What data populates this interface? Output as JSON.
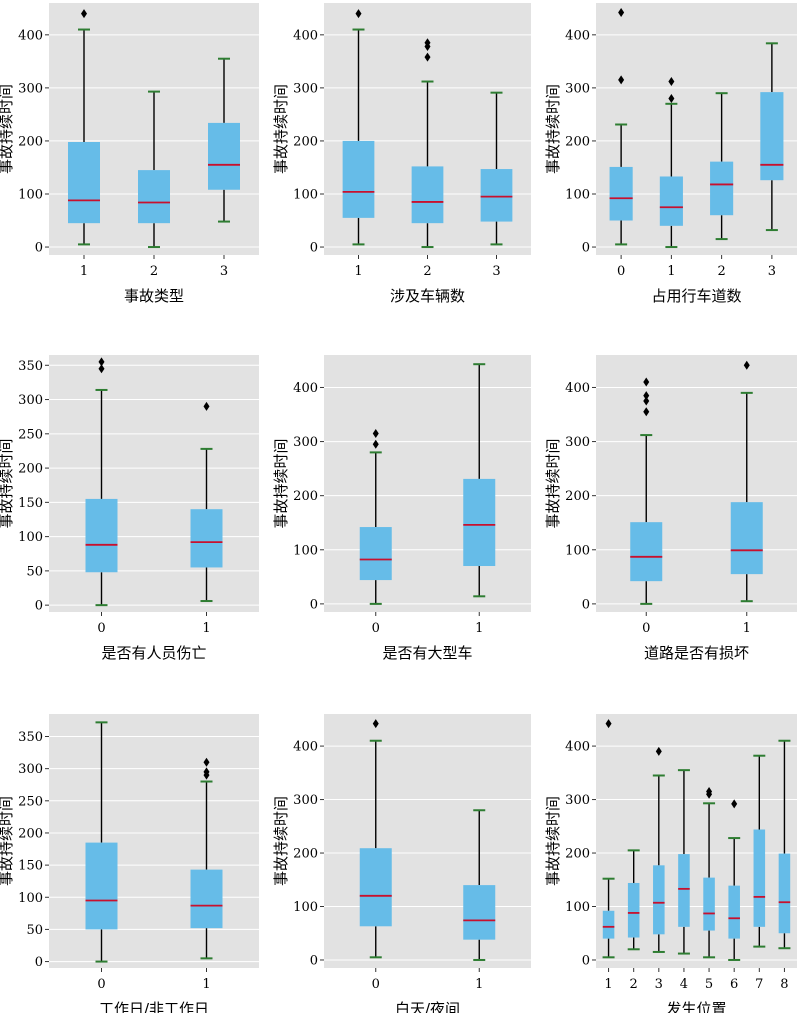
{
  "colors": {
    "box": "#66bce8",
    "median": "#c8102e",
    "cap": "#2e7d32",
    "whisker": "#000000",
    "outlier": "#000000"
  },
  "chart_data": [
    {
      "type": "boxplot",
      "xlabel": "事故类型",
      "ylabel": "事故持续时间",
      "ylim": [
        -15,
        460
      ],
      "yticks": [
        0,
        100,
        200,
        300,
        400
      ],
      "categories": [
        "1",
        "2",
        "3"
      ],
      "boxes": [
        {
          "min": 5,
          "q1": 45,
          "median": 88,
          "q3": 198,
          "max": 410,
          "outliers": [
            440
          ]
        },
        {
          "min": 0,
          "q1": 45,
          "median": 84,
          "q3": 145,
          "max": 293,
          "outliers": []
        },
        {
          "min": 48,
          "q1": 108,
          "median": 155,
          "q3": 234,
          "max": 355,
          "outliers": []
        }
      ]
    },
    {
      "type": "boxplot",
      "xlabel": "涉及车辆数",
      "ylabel": "事故持续时间",
      "ylim": [
        -15,
        460
      ],
      "yticks": [
        0,
        100,
        200,
        300,
        400
      ],
      "categories": [
        "1",
        "2",
        "3"
      ],
      "boxes": [
        {
          "min": 5,
          "q1": 55,
          "median": 104,
          "q3": 200,
          "max": 410,
          "outliers": [
            440
          ]
        },
        {
          "min": 0,
          "q1": 45,
          "median": 85,
          "q3": 152,
          "max": 312,
          "outliers": [
            358,
            378,
            385
          ]
        },
        {
          "min": 5,
          "q1": 48,
          "median": 95,
          "q3": 147,
          "max": 291,
          "outliers": []
        }
      ]
    },
    {
      "type": "boxplot",
      "xlabel": "占用行车道数",
      "ylabel": "事故持续时间",
      "ylim": [
        -15,
        460
      ],
      "yticks": [
        0,
        100,
        200,
        300,
        400
      ],
      "categories": [
        "0",
        "1",
        "2",
        "3"
      ],
      "boxes": [
        {
          "min": 5,
          "q1": 50,
          "median": 92,
          "q3": 151,
          "max": 231,
          "outliers": [
            315,
            442
          ]
        },
        {
          "min": 0,
          "q1": 40,
          "median": 75,
          "q3": 133,
          "max": 270,
          "outliers": [
            280,
            312
          ]
        },
        {
          "min": 15,
          "q1": 60,
          "median": 118,
          "q3": 161,
          "max": 290,
          "outliers": []
        },
        {
          "min": 32,
          "q1": 126,
          "median": 155,
          "q3": 292,
          "max": 384,
          "outliers": []
        }
      ]
    },
    {
      "type": "boxplot",
      "xlabel": "是否有人员伤亡",
      "ylabel": "事故持续时间",
      "ylim": [
        -10,
        365
      ],
      "yticks": [
        0,
        50,
        100,
        150,
        200,
        250,
        300,
        350
      ],
      "categories": [
        "0",
        "1"
      ],
      "boxes": [
        {
          "min": 0,
          "q1": 48,
          "median": 88,
          "q3": 155,
          "max": 314,
          "outliers": [
            345,
            355
          ]
        },
        {
          "min": 6,
          "q1": 55,
          "median": 92,
          "q3": 140,
          "max": 228,
          "outliers": [
            290
          ]
        }
      ]
    },
    {
      "type": "boxplot",
      "xlabel": "是否有大型车",
      "ylabel": "事故持续时间",
      "ylim": [
        -15,
        460
      ],
      "yticks": [
        0,
        100,
        200,
        300,
        400
      ],
      "categories": [
        "0",
        "1"
      ],
      "boxes": [
        {
          "min": 0,
          "q1": 44,
          "median": 82,
          "q3": 142,
          "max": 280,
          "outliers": [
            295,
            315
          ]
        },
        {
          "min": 14,
          "q1": 70,
          "median": 146,
          "q3": 231,
          "max": 443,
          "outliers": []
        }
      ]
    },
    {
      "type": "boxplot",
      "xlabel": "道路是否有损坏",
      "ylabel": "事故持续时间",
      "ylim": [
        -15,
        460
      ],
      "yticks": [
        0,
        100,
        200,
        300,
        400
      ],
      "categories": [
        "0",
        "1"
      ],
      "boxes": [
        {
          "min": 0,
          "q1": 42,
          "median": 87,
          "q3": 151,
          "max": 312,
          "outliers": [
            355,
            375,
            385,
            410
          ]
        },
        {
          "min": 5,
          "q1": 55,
          "median": 99,
          "q3": 188,
          "max": 390,
          "outliers": [
            441
          ]
        }
      ]
    },
    {
      "type": "boxplot",
      "xlabel": "工作日/非工作日",
      "ylabel": "事故持续时间",
      "ylim": [
        -10,
        385
      ],
      "yticks": [
        0,
        50,
        100,
        150,
        200,
        250,
        300,
        350
      ],
      "categories": [
        "0",
        "1"
      ],
      "boxes": [
        {
          "min": 0,
          "q1": 50,
          "median": 95,
          "q3": 185,
          "max": 372,
          "outliers": []
        },
        {
          "min": 5,
          "q1": 52,
          "median": 87,
          "q3": 143,
          "max": 280,
          "outliers": [
            290,
            295,
            310
          ]
        }
      ]
    },
    {
      "type": "boxplot",
      "xlabel": "白天/夜间",
      "ylabel": "事故持续时间",
      "ylim": [
        -15,
        460
      ],
      "yticks": [
        0,
        100,
        200,
        300,
        400
      ],
      "categories": [
        "0",
        "1"
      ],
      "boxes": [
        {
          "min": 5,
          "q1": 63,
          "median": 120,
          "q3": 209,
          "max": 410,
          "outliers": [
            442
          ]
        },
        {
          "min": 0,
          "q1": 38,
          "median": 74,
          "q3": 140,
          "max": 280,
          "outliers": []
        }
      ]
    },
    {
      "type": "boxplot",
      "xlabel": "发生位置",
      "ylabel": "事故持续时间",
      "ylim": [
        -15,
        460
      ],
      "yticks": [
        0,
        100,
        200,
        300,
        400
      ],
      "categories": [
        "1",
        "2",
        "3",
        "4",
        "5",
        "6",
        "7",
        "8"
      ],
      "boxes": [
        {
          "min": 5,
          "q1": 40,
          "median": 62,
          "q3": 92,
          "max": 152,
          "outliers": [
            442
          ]
        },
        {
          "min": 20,
          "q1": 42,
          "median": 88,
          "q3": 144,
          "max": 205,
          "outliers": []
        },
        {
          "min": 15,
          "q1": 48,
          "median": 107,
          "q3": 177,
          "max": 345,
          "outliers": [
            390
          ]
        },
        {
          "min": 12,
          "q1": 62,
          "median": 133,
          "q3": 198,
          "max": 355,
          "outliers": []
        },
        {
          "min": 5,
          "q1": 55,
          "median": 87,
          "q3": 154,
          "max": 293,
          "outliers": [
            310,
            315
          ]
        },
        {
          "min": 0,
          "q1": 40,
          "median": 78,
          "q3": 139,
          "max": 228,
          "outliers": [
            292
          ]
        },
        {
          "min": 25,
          "q1": 62,
          "median": 118,
          "q3": 244,
          "max": 382,
          "outliers": []
        },
        {
          "min": 22,
          "q1": 50,
          "median": 108,
          "q3": 199,
          "max": 410,
          "outliers": []
        }
      ]
    }
  ]
}
